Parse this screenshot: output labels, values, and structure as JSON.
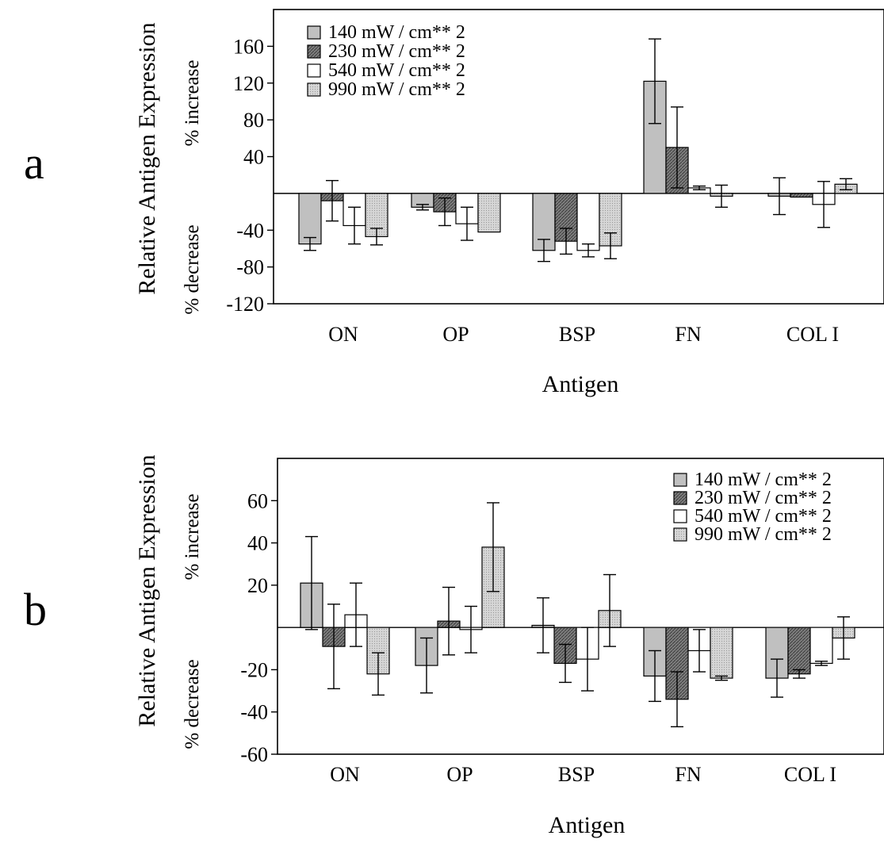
{
  "patterns": {
    "pat_230": "#7f7f7f",
    "pat_990": "#d6d6d6"
  },
  "chart_data": [
    {
      "panel_label": "a",
      "type": "bar",
      "categories": [
        "ON",
        "OP",
        "BSP",
        "FN",
        "COL I"
      ],
      "xlabel": "Antigen",
      "ylabel": "Relative Antigen Expression",
      "ylabel_increase": "% increase",
      "ylabel_decrease": "% decrease",
      "ylim": [
        -120,
        200
      ],
      "yticks": [
        160,
        120,
        80,
        40,
        -40,
        -80,
        -120
      ],
      "legend_position": "top-left",
      "grid": false,
      "series": [
        {
          "name": "140 mW / cm** 2",
          "fill": "#c0c0c0",
          "pattern": "",
          "values": [
            -55,
            -15,
            -62,
            122,
            -3
          ],
          "errors": [
            7,
            3,
            12,
            46,
            20
          ]
        },
        {
          "name": "230 mW / cm** 2",
          "fill": "#808080",
          "pattern": "pat_230",
          "values": [
            -8,
            -20,
            -52,
            50,
            -4
          ],
          "errors": [
            22,
            15,
            14,
            44,
            0
          ]
        },
        {
          "name": "540 mW / cm** 2",
          "fill": "#ffffff",
          "pattern": "",
          "values": [
            -35,
            -33,
            -62,
            6,
            -12
          ],
          "errors": [
            20,
            18,
            7,
            2,
            25
          ]
        },
        {
          "name": "990 mW / cm** 2",
          "fill": "#e2e2e2",
          "pattern": "pat_990",
          "values": [
            -47,
            -42,
            -57,
            -3,
            10
          ],
          "errors": [
            9,
            0,
            14,
            12,
            6
          ]
        }
      ]
    },
    {
      "panel_label": "b",
      "type": "bar",
      "categories": [
        "ON",
        "OP",
        "BSP",
        "FN",
        "COL I"
      ],
      "xlabel": "Antigen",
      "ylabel": "Relative Antigen Expression",
      "ylabel_increase": "% increase",
      "ylabel_decrease": "% decrease",
      "ylim": [
        -60,
        80
      ],
      "yticks": [
        60,
        40,
        20,
        -20,
        -40,
        -60
      ],
      "legend_position": "top-right",
      "grid": false,
      "series": [
        {
          "name": "140 mW / cm** 2",
          "fill": "#c0c0c0",
          "pattern": "",
          "values": [
            21,
            -18,
            1,
            -23,
            -24
          ],
          "errors": [
            22,
            13,
            13,
            12,
            9
          ]
        },
        {
          "name": "230 mW / cm** 2",
          "fill": "#808080",
          "pattern": "pat_230",
          "values": [
            -9,
            3,
            -17,
            -34,
            -22
          ],
          "errors": [
            20,
            16,
            9,
            13,
            2
          ]
        },
        {
          "name": "540 mW / cm** 2",
          "fill": "#ffffff",
          "pattern": "",
          "values": [
            6,
            -1,
            -15,
            -11,
            -17
          ],
          "errors": [
            15,
            11,
            15,
            10,
            1
          ]
        },
        {
          "name": "990 mW / cm** 2",
          "fill": "#e2e2e2",
          "pattern": "pat_990",
          "values": [
            -22,
            38,
            8,
            -24,
            -5
          ],
          "errors": [
            10,
            21,
            17,
            1,
            10
          ]
        }
      ]
    }
  ]
}
